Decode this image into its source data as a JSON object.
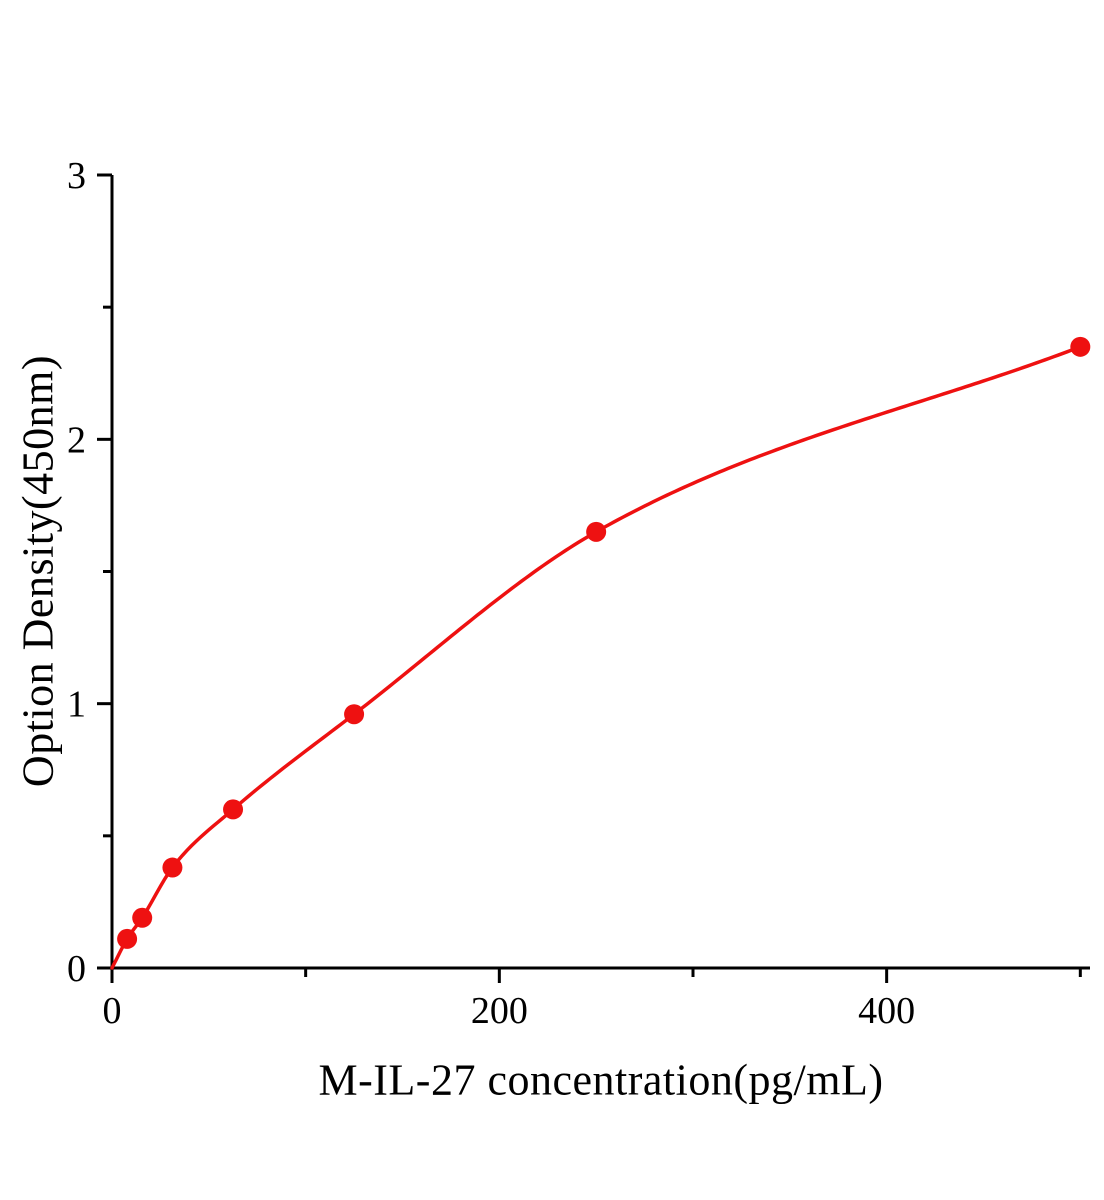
{
  "figure": {
    "background": "#ffffff"
  },
  "chart_data": {
    "type": "scatter",
    "title": "",
    "xlabel": "M-IL-27 concentration(pg/mL)",
    "ylabel": "Option Density(450nm)",
    "x": [
      7.8,
      15.6,
      31.2,
      62.5,
      125,
      250,
      500
    ],
    "y": [
      0.11,
      0.19,
      0.38,
      0.6,
      0.96,
      1.65,
      2.35
    ],
    "fit_curve": {
      "style": "smooth",
      "through_origin": true
    },
    "xlim": [
      0,
      505
    ],
    "ylim": [
      0,
      3
    ],
    "x_major_ticks": [
      0,
      200,
      400
    ],
    "x_minor_ticks": [
      100,
      300,
      500
    ],
    "y_major_ticks": [
      0,
      1,
      2,
      3
    ],
    "y_minor_ticks": [
      0.5,
      1.5,
      2.5
    ],
    "x_tick_labels": [
      "0",
      "200",
      "400"
    ],
    "y_tick_labels": [
      "0",
      "1",
      "2",
      "3"
    ],
    "grid": false,
    "legend": null,
    "colors": {
      "curve": "#ee1111",
      "points": "#ee1111",
      "axis": "#000000",
      "text": "#000000"
    },
    "point_radius": 10
  }
}
